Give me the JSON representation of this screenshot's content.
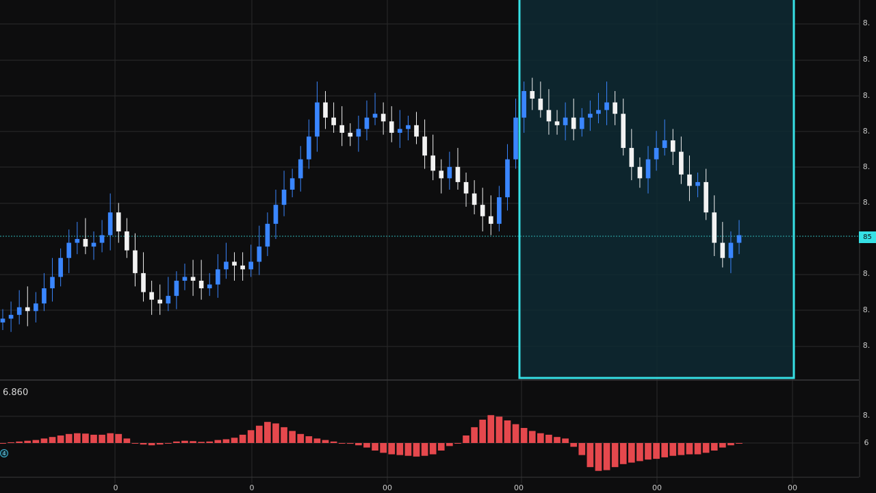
{
  "price_axis": {
    "labels": [
      "8.",
      "8.",
      "8.",
      "8.",
      "8.",
      "8.",
      "8.",
      "8.",
      "8.",
      "8."
    ],
    "current_price_badge": "85"
  },
  "time_axis": {
    "labels": [
      "0",
      "0",
      "00",
      "00",
      "00",
      "00"
    ]
  },
  "indicator": {
    "value": "6.860",
    "axis_labels": [
      "8.",
      "6"
    ],
    "marker": "4"
  },
  "colors": {
    "background": "#0d0d0e",
    "grid": "#2a2a2c",
    "bull_candle": "#3a86ff",
    "bear_candle": "#f2f2f2",
    "highlight_border": "#36e1e6",
    "highlight_fill": "#0e2a33",
    "histogram": "#e5484d",
    "price_line": "#2fb8b8"
  },
  "chart_data": [
    {
      "type": "candlestick",
      "title": "",
      "xlabel": "",
      "ylabel": "",
      "ylim": [
        0,
        10
      ],
      "grid": true,
      "highlight_range": [
        0.593,
        0.906
      ],
      "close": [
        1.6,
        1.7,
        1.9,
        1.8,
        2.0,
        2.4,
        2.7,
        3.2,
        3.6,
        3.7,
        3.5,
        3.6,
        3.8,
        4.4,
        3.9,
        3.4,
        2.8,
        2.3,
        2.1,
        2.0,
        2.2,
        2.6,
        2.7,
        2.6,
        2.4,
        2.5,
        2.9,
        3.1,
        3.0,
        2.9,
        3.1,
        3.5,
        4.1,
        4.6,
        5.0,
        5.3,
        5.8,
        6.4,
        7.3,
        6.9,
        6.7,
        6.5,
        6.4,
        6.6,
        6.9,
        7.0,
        6.8,
        6.5,
        6.6,
        6.7,
        6.4,
        5.9,
        5.5,
        5.3,
        5.6,
        5.2,
        4.9,
        4.6,
        4.3,
        4.1,
        4.8,
        5.8,
        6.9,
        7.6,
        7.4,
        7.1,
        6.8,
        6.7,
        6.9,
        6.6,
        6.9,
        7.0,
        7.1,
        7.3,
        7.0,
        6.1,
        5.6,
        5.3,
        5.8,
        6.1,
        6.3,
        6.0,
        5.4,
        5.1,
        5.2,
        4.4,
        3.6,
        3.2,
        3.6,
        3.8
      ]
    },
    {
      "type": "histogram",
      "title": "",
      "xlabel": "",
      "ylabel": "",
      "values": [
        0.0,
        0.02,
        0.04,
        0.06,
        0.08,
        0.12,
        0.16,
        0.2,
        0.24,
        0.26,
        0.25,
        0.22,
        0.22,
        0.26,
        0.24,
        0.12,
        0.0,
        -0.04,
        -0.06,
        -0.04,
        0.0,
        0.04,
        0.06,
        0.05,
        0.03,
        0.04,
        0.08,
        0.1,
        0.14,
        0.22,
        0.34,
        0.46,
        0.56,
        0.52,
        0.42,
        0.32,
        0.24,
        0.18,
        0.12,
        0.08,
        0.04,
        0.0,
        -0.02,
        -0.06,
        -0.12,
        -0.2,
        -0.26,
        -0.3,
        -0.32,
        -0.34,
        -0.36,
        -0.34,
        -0.3,
        -0.2,
        -0.08,
        0.0,
        0.2,
        0.42,
        0.62,
        0.74,
        0.7,
        0.6,
        0.5,
        0.4,
        0.32,
        0.26,
        0.22,
        0.16,
        0.12,
        -0.1,
        -0.32,
        -0.64,
        -0.74,
        -0.72,
        -0.64,
        -0.56,
        -0.52,
        -0.48,
        -0.44,
        -0.42,
        -0.38,
        -0.34,
        -0.32,
        -0.3,
        -0.3,
        -0.26,
        -0.2,
        -0.12,
        -0.06,
        0.0
      ]
    }
  ]
}
